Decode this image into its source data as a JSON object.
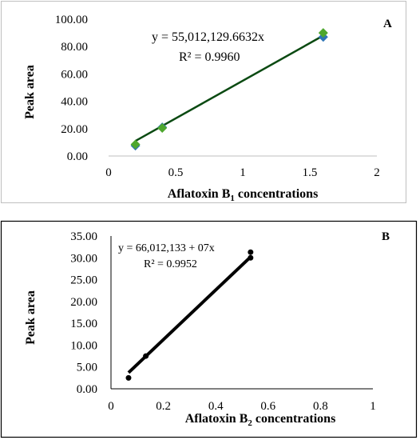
{
  "chart_data": [
    {
      "panel": "A",
      "type": "scatter",
      "xlabel_main": "Aflatoxin B",
      "xlabel_sub": "1",
      "xlabel_rest": " concentrations",
      "ylabel": "Peak area",
      "xlim": [
        0,
        2
      ],
      "ylim": [
        0,
        100
      ],
      "xticks": [
        "0",
        "0.5",
        "1",
        "1.5",
        "2"
      ],
      "yticks": [
        "0.00",
        "20.00",
        "40.00",
        "60.00",
        "80.00",
        "100.00"
      ],
      "equation": "y = 55,012,129.6632x",
      "r2": "R² = 0.9960",
      "series": [
        {
          "marker": "diamond",
          "color": "#2e75b6",
          "x": [
            0.2,
            0.4,
            1.6
          ],
          "y": [
            7.5,
            21.0,
            87.0
          ]
        },
        {
          "marker": "diamond",
          "color": "#4ea72e",
          "x": [
            0.2,
            0.4,
            1.6
          ],
          "y": [
            8.5,
            20.5,
            90.0
          ]
        }
      ],
      "trendline": {
        "color": "#0b4a12",
        "x": [
          0.2,
          1.6
        ],
        "y": [
          11.0,
          88.0
        ]
      },
      "grid": false
    },
    {
      "panel": "B",
      "type": "scatter",
      "xlabel_main": "Aflatoxin B",
      "xlabel_sub": "2",
      "xlabel_rest": " concentrations",
      "ylabel": "Peak area",
      "xlim": [
        0,
        1
      ],
      "ylim": [
        0,
        35
      ],
      "xticks": [
        "0",
        "0.2",
        "0.4",
        "0.6",
        "0.8",
        "1"
      ],
      "yticks": [
        "0.00",
        "5.00",
        "10.00",
        "15.00",
        "20.00",
        "25.00",
        "30.00",
        "35.00"
      ],
      "equation": "y = 66,012,133 + 07x",
      "r2": "R² = 0.9952",
      "series": [
        {
          "marker": "circle",
          "color": "#000000",
          "x": [
            0.067,
            0.133,
            0.533,
            0.533
          ],
          "y": [
            2.5,
            7.5,
            30.0,
            31.3
          ]
        }
      ],
      "trendline": {
        "color": "#000000",
        "x": [
          0.067,
          0.533
        ],
        "y": [
          3.7,
          30.2
        ]
      },
      "grid": false
    }
  ]
}
